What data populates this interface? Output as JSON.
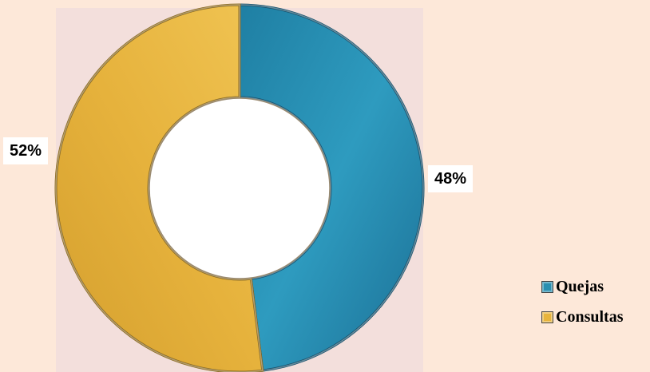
{
  "chart_data": {
    "type": "pie",
    "variant": "donut",
    "title": "",
    "categories": [
      "Quejas",
      "Consultas"
    ],
    "values": [
      48,
      52
    ],
    "labels": [
      "48%",
      "52%"
    ],
    "colors": [
      "#2a8fb0",
      "#e8b43c"
    ],
    "start": "top-clockwise",
    "legend": {
      "position": "bottom-right"
    }
  }
}
